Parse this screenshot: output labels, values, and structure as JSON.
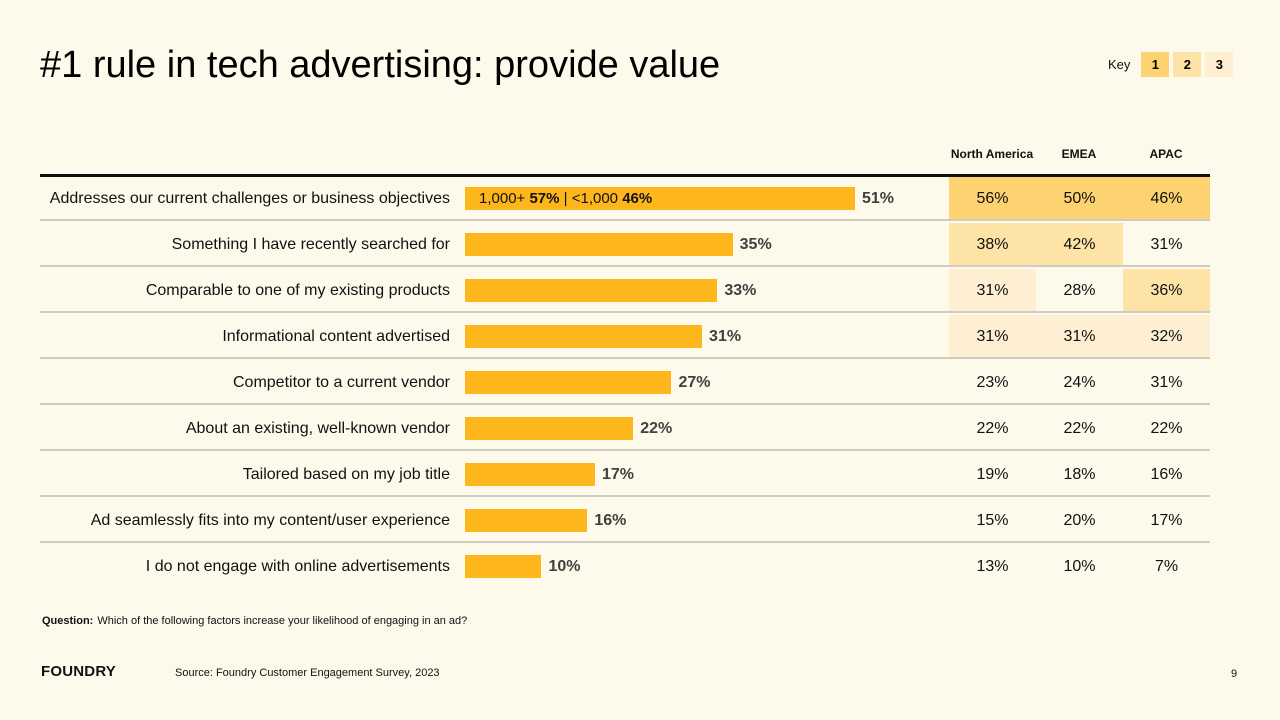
{
  "title": "#1 rule in tech advertising: provide value",
  "key": {
    "label": "Key",
    "items": [
      {
        "rank": "1",
        "color": "#FDD271"
      },
      {
        "rank": "2",
        "color": "#FEE3A6"
      },
      {
        "rank": "3",
        "color": "#FFEFD2"
      }
    ]
  },
  "colors": {
    "bar": "#FDB71C",
    "rank1": "#FDD271",
    "rank2": "#FEE3A6",
    "rank3": "#FFEFD2",
    "background": "#FDF9EB"
  },
  "table_headers": [
    "North America",
    "EMEA",
    "APAC"
  ],
  "chart_data": {
    "type": "bar",
    "orientation": "horizontal",
    "title": "#1 rule in tech advertising: provide value",
    "xlabel": "",
    "ylabel": "",
    "xlim": [
      0,
      60
    ],
    "grid": false,
    "categories": [
      "Addresses our current challenges or business objectives",
      "Something I have recently searched for",
      "Comparable to one of my existing products",
      "Informational content advertised",
      "Competitor to a current vendor",
      "About an existing, well-known vendor",
      "Tailored based on my job title",
      "Ad seamlessly fits into my content/user experience",
      "I do not engage with online advertisements"
    ],
    "values": [
      51,
      35,
      33,
      31,
      27,
      22,
      17,
      16,
      10
    ],
    "value_labels": [
      "51%",
      "35%",
      "33%",
      "31%",
      "27%",
      "22%",
      "17%",
      "16%",
      "10%"
    ],
    "annotation": {
      "row": 0,
      "segments": [
        {
          "text": "1,000+ ",
          "bold": false
        },
        {
          "text": "57%",
          "bold": true
        },
        {
          "text": " | <1,000 ",
          "bold": false
        },
        {
          "text": "46%",
          "bold": true
        }
      ]
    },
    "regional_table": {
      "columns": [
        "North America",
        "EMEA",
        "APAC"
      ],
      "rows": [
        {
          "values": [
            "56%",
            "50%",
            "46%"
          ],
          "rank": [
            1,
            1,
            1
          ]
        },
        {
          "values": [
            "38%",
            "42%",
            "31%"
          ],
          "rank": [
            2,
            2,
            0
          ]
        },
        {
          "values": [
            "31%",
            "28%",
            "36%"
          ],
          "rank": [
            3,
            0,
            2
          ]
        },
        {
          "values": [
            "31%",
            "31%",
            "32%"
          ],
          "rank": [
            3,
            3,
            3
          ]
        },
        {
          "values": [
            "23%",
            "24%",
            "31%"
          ],
          "rank": [
            0,
            0,
            0
          ]
        },
        {
          "values": [
            "22%",
            "22%",
            "22%"
          ],
          "rank": [
            0,
            0,
            0
          ]
        },
        {
          "values": [
            "19%",
            "18%",
            "16%"
          ],
          "rank": [
            0,
            0,
            0
          ]
        },
        {
          "values": [
            "15%",
            "20%",
            "17%"
          ],
          "rank": [
            0,
            0,
            0
          ]
        },
        {
          "values": [
            "13%",
            "10%",
            "7%"
          ],
          "rank": [
            0,
            0,
            0
          ]
        }
      ]
    }
  },
  "footer": {
    "question_label": "Question:",
    "question_text": "Which of the following factors increase your likelihood of engaging in an ad?",
    "logo": "FOUNDRY",
    "source": "Source: Foundry Customer Engagement Survey, 2023",
    "page_number": "9"
  }
}
